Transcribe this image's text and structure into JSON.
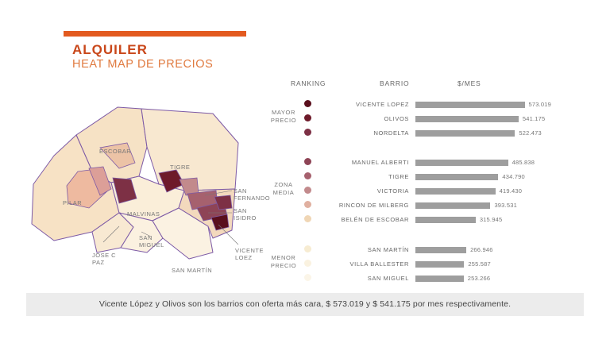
{
  "header": {
    "title": "ALQUILER",
    "subtitle": "HEAT MAP DE PRECIOS",
    "title_color": "#c9471a",
    "subtitle_color": "#e07a3f",
    "accent_color": "#e35a1f"
  },
  "map": {
    "labels": {
      "escobar": "ESCOBAR",
      "tigre": "TIGRE",
      "pilar": "PILAR",
      "malvinas": "MALVINAS",
      "san_fernando_1": "SAN",
      "san_fernando_2": "FERNANDO",
      "san_isidro_1": "SAN",
      "san_isidro_2": "ISIDRO",
      "san_miguel_1": "SAN",
      "san_miguel_2": "MIGUEL",
      "jose_c_paz_1": "JOSE C",
      "jose_c_paz_2": "PAZ",
      "vicente_lopez_1": "VICENTE",
      "vicente_lopez_2": "LOEZ",
      "san_martin": "SAN MARTÍN"
    }
  },
  "ranking": {
    "col_ranking": "RANKING",
    "col_barrio": "BARRIO",
    "col_price": "$/MES",
    "zone_high": [
      "MAYOR",
      "PRECIO"
    ],
    "zone_mid": [
      "ZONA",
      "MEDIA"
    ],
    "zone_low": [
      "MENOR",
      "PRECIO"
    ]
  },
  "chart_data": {
    "type": "bar",
    "orientation": "horizontal",
    "title": "HEAT MAP DE PRECIOS",
    "categories": [
      "VICENTE LOPEZ",
      "OLIVOS",
      "NORDELTA",
      "MANUEL ALBERTI",
      "TIGRE",
      "VICTORIA",
      "RINCON DE MILBERG",
      "BELÉN DE ESCOBAR",
      "SAN MARTÍN",
      "VILLA BALLESTER",
      "SAN MIGUEL"
    ],
    "values": [
      573019,
      541175,
      522473,
      485838,
      434790,
      419430,
      393531,
      315945,
      266946,
      255587,
      253266
    ],
    "value_labels": [
      "573.019",
      "541.175",
      "522.473",
      "485.838",
      "434.790",
      "419.430",
      "393.531",
      "315.945",
      "266.946",
      "255.587",
      "253.266"
    ],
    "rank_colors": [
      "#5a0f1c",
      "#6e1a2a",
      "#7d3045",
      "#8e4456",
      "#a6616e",
      "#c28a8c",
      "#e0b0a0",
      "#f0d6b5",
      "#f7ecd2",
      "#faf2e0",
      "#fbf5e8"
    ],
    "bar_color": "#9e9e9e",
    "xlim": [
      0,
      600000
    ]
  },
  "footer": {
    "text": "Vicente López y Olivos son los barrios con oferta más cara, $ 573.019 y $ 541.175 por mes respectivamente."
  }
}
